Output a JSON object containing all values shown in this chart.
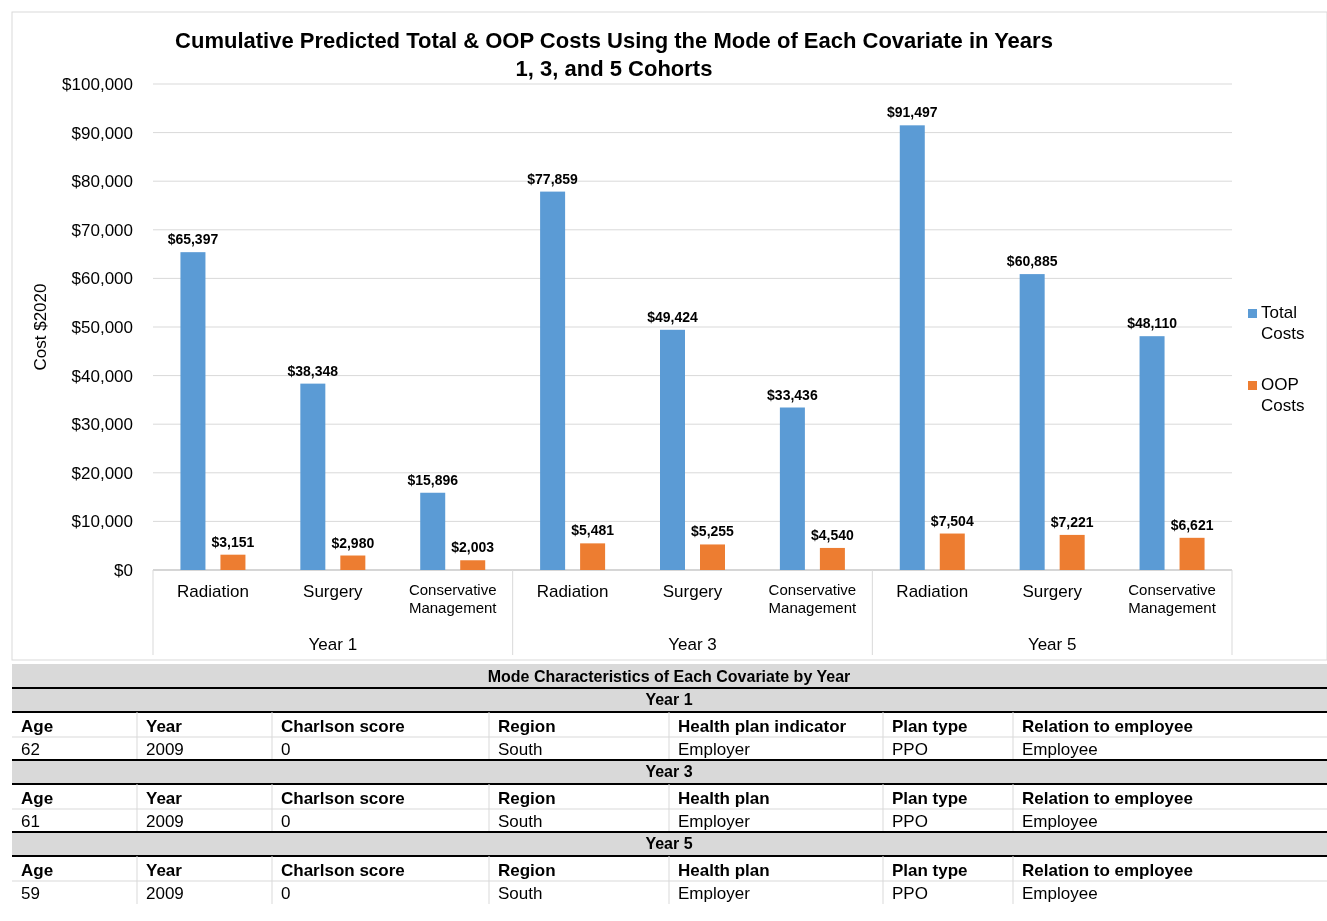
{
  "chart_data": [
    {
      "type": "bar",
      "title": "Cumulative Predicted Total & OOP Costs Using the Mode of Each Covariate in Years 1, 3, and 5 Cohorts",
      "ylabel": "Cost $2020",
      "categories": [
        "Radiation",
        "Surgery",
        "Conservative Management",
        "Radiation",
        "Surgery",
        "Conservative Management",
        "Radiation",
        "Surgery",
        "Conservative Management"
      ],
      "annotations": [
        "Year 1",
        "Year 3",
        "Year 5"
      ],
      "series": [
        {
          "name": "Total Costs",
          "color": "#5b9bd5",
          "values": [
            65397,
            38348,
            15896,
            77859,
            49424,
            33436,
            91497,
            60885,
            48110
          ],
          "value_labels": [
            "$65,397",
            "$38,348",
            "$15,896",
            "$77,859",
            "$49,424",
            "$33,436",
            "$91,497",
            "$60,885",
            "$48,110"
          ]
        },
        {
          "name": "OOP Costs",
          "color": "#ed7d31",
          "values": [
            3151,
            2980,
            2003,
            5481,
            5255,
            4540,
            7504,
            7221,
            6621
          ],
          "value_labels": [
            "$3,151",
            "$2,980",
            "$2,003",
            "$5,481",
            "$5,255",
            "$4,540",
            "$7,504",
            "$7,221",
            "$6,621"
          ]
        }
      ],
      "ylim": [
        0,
        100000
      ],
      "yticks": [
        {
          "value": 0,
          "label": "$0"
        },
        {
          "value": 10000,
          "label": "$10,000"
        },
        {
          "value": 20000,
          "label": "$20,000"
        },
        {
          "value": 30000,
          "label": "$30,000"
        },
        {
          "value": 40000,
          "label": "$40,000"
        },
        {
          "value": 50000,
          "label": "$50,000"
        },
        {
          "value": 60000,
          "label": "$60,000"
        },
        {
          "value": 70000,
          "label": "$70,000"
        },
        {
          "value": 80000,
          "label": "$80,000"
        },
        {
          "value": 90000,
          "label": "$90,000"
        },
        {
          "value": 100000,
          "label": "$100,000"
        }
      ],
      "grid": "y",
      "legend": "right"
    },
    {
      "type": "other",
      "title": "Mode Characteristics of Each Covariate by Year",
      "annotations": [
        "Year 1",
        "Age",
        "Year",
        "Charlson score",
        "Region",
        "Health plan indicator",
        "Plan type",
        "Relation to employee",
        "62",
        "2009",
        "0",
        "South",
        "Employer",
        "PPO",
        "Employee",
        "Year 3",
        "Age",
        "Year",
        "Charlson score",
        "Region",
        "Health plan",
        "Plan type",
        "Relation to employee",
        "61",
        "2009",
        "0",
        "South",
        "Employer",
        "PPO",
        "Employee",
        "Year 5",
        "Age",
        "Year",
        "Charlson score",
        "Region",
        "Health plan",
        "Plan type",
        "Relation to employee",
        "59",
        "2009",
        "0",
        "South",
        "Employer",
        "PPO",
        "Employee"
      ]
    }
  ]
}
